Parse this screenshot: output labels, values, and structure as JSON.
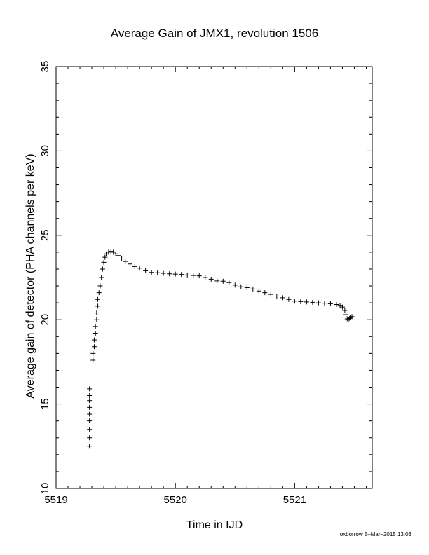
{
  "chart_data": {
    "type": "scatter",
    "title": "Average Gain of JMX1, revolution 1506",
    "xlabel": "Time in IJD",
    "ylabel": "Average gain of detector (PHA channels per keV)",
    "xlim": [
      5519,
      5521.65
    ],
    "ylim": [
      10,
      35
    ],
    "xticks": [
      "5519",
      "5520",
      "5521"
    ],
    "yticks": [
      "10",
      "15",
      "20",
      "25",
      "30",
      "35"
    ],
    "marker": "+",
    "grid": false,
    "series": [
      {
        "x": [
          5519.28,
          5519.28,
          5519.28,
          5519.28,
          5519.28,
          5519.28,
          5519.28,
          5519.28,
          5519.28,
          5519.31,
          5519.31,
          5519.32,
          5519.32,
          5519.33,
          5519.33,
          5519.34,
          5519.34,
          5519.35,
          5519.35,
          5519.36,
          5519.37,
          5519.38,
          5519.39,
          5519.4,
          5519.41,
          5519.42,
          5519.44,
          5519.46,
          5519.48,
          5519.5,
          5519.52,
          5519.55,
          5519.58,
          5519.62,
          5519.66,
          5519.7,
          5519.75,
          5519.8,
          5519.85,
          5519.9,
          5519.95,
          5520.0,
          5520.05,
          5520.1,
          5520.15,
          5520.2,
          5520.25,
          5520.3,
          5520.35,
          5520.4,
          5520.45,
          5520.5,
          5520.55,
          5520.6,
          5520.65,
          5520.7,
          5520.75,
          5520.8,
          5520.85,
          5520.9,
          5520.95,
          5521.0,
          5521.05,
          5521.1,
          5521.15,
          5521.2,
          5521.25,
          5521.3,
          5521.35,
          5521.38,
          5521.4,
          5521.42,
          5521.43,
          5521.44,
          5521.45,
          5521.46,
          5521.47,
          5521.48
        ],
        "y": [
          12.5,
          13.0,
          13.5,
          14.0,
          14.4,
          14.8,
          15.2,
          15.5,
          15.9,
          17.6,
          18.0,
          18.4,
          18.8,
          19.2,
          19.6,
          20.0,
          20.4,
          20.8,
          21.2,
          21.6,
          22.0,
          22.5,
          23.0,
          23.4,
          23.7,
          23.9,
          24.0,
          24.05,
          24.0,
          23.9,
          23.8,
          23.6,
          23.45,
          23.3,
          23.15,
          23.05,
          22.9,
          22.8,
          22.78,
          22.75,
          22.72,
          22.7,
          22.68,
          22.65,
          22.62,
          22.6,
          22.5,
          22.4,
          22.3,
          22.28,
          22.2,
          22.05,
          21.95,
          21.9,
          21.82,
          21.7,
          21.6,
          21.5,
          21.4,
          21.3,
          21.2,
          21.1,
          21.07,
          21.05,
          21.03,
          21.0,
          20.98,
          20.95,
          20.9,
          20.85,
          20.75,
          20.55,
          20.3,
          20.05,
          20.0,
          20.08,
          20.12,
          20.18
        ]
      }
    ]
  },
  "footer": "oxborrow  5–Mar–2015 13:03"
}
